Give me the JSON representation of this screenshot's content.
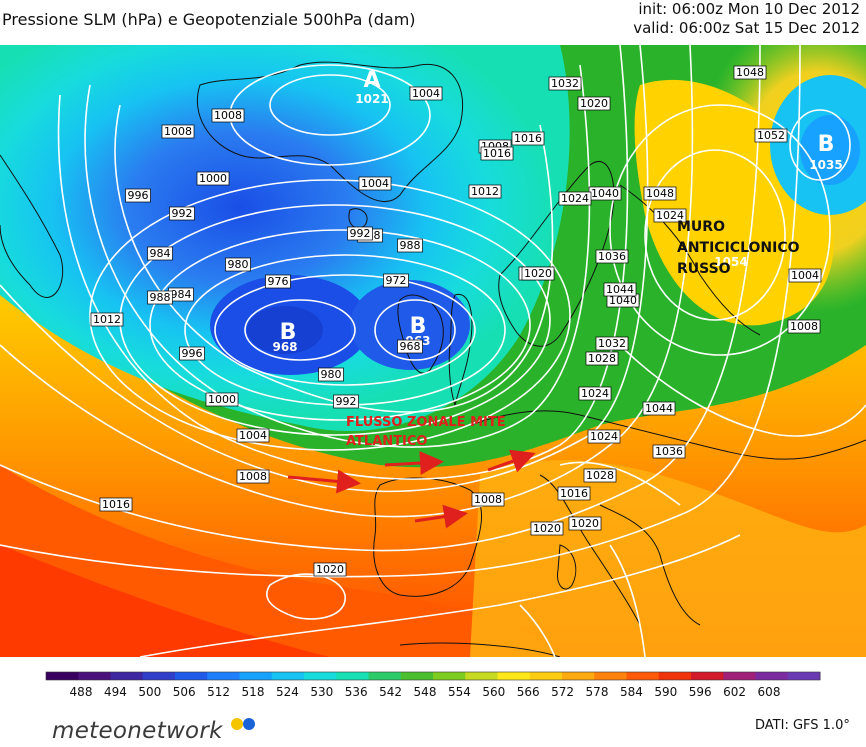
{
  "header": {
    "title": "Pressione SLM (hPa) e Geopotenziale 500hPa (dam)",
    "init": "init: 06:00z Mon 10 Dec 2012",
    "valid": "valid: 06:00z Sat 15 Dec 2012"
  },
  "map": {
    "pressure_centers": [
      {
        "kind": "A",
        "value": "1021"
      },
      {
        "kind": "B",
        "value": "1035"
      },
      {
        "kind": "B",
        "value": "968"
      },
      {
        "kind": "B",
        "value": "963"
      },
      {
        "kind": "",
        "value": "1054"
      }
    ],
    "isobar_labels": [
      "1008",
      "1008",
      "1004",
      "1000",
      "1004",
      "1008",
      "1020",
      "1016",
      "1012",
      "1016",
      "1020",
      "996",
      "992",
      "988",
      "984",
      "980",
      "976",
      "972",
      "968",
      "980",
      "984",
      "988",
      "992",
      "996",
      "1000",
      "1004",
      "1008",
      "1012",
      "1016",
      "1020",
      "1024",
      "1028",
      "1032",
      "1036",
      "1040",
      "1044",
      "1048",
      "1052",
      "1004",
      "1008",
      "1012",
      "1016",
      "1020",
      "1024",
      "1028",
      "1032",
      "1036",
      "1040",
      "1044",
      "1048",
      "1024",
      "1024",
      "1020",
      "1008",
      "992",
      "988"
    ],
    "annotations": {
      "russian_high": [
        "MURO",
        "ANTICICLONICO",
        "RUSSO"
      ],
      "zonal_flow": [
        "FLUSSO ZONALE MITE",
        "ATLANTICO"
      ]
    },
    "colors": {
      "low": "#1a4ee6",
      "mid": "#17d7d7",
      "green": "#2ab32a",
      "yellow": "#ffd200",
      "orange": "#ff8a00",
      "red": "#ff3a00",
      "annotation_red": "#e0201c",
      "isobar": "#ffffff",
      "coast": "#111111"
    }
  },
  "legend": {
    "values": [
      "488",
      "494",
      "500",
      "506",
      "512",
      "518",
      "524",
      "530",
      "536",
      "542",
      "548",
      "554",
      "560",
      "566",
      "572",
      "578",
      "584",
      "590",
      "596",
      "602",
      "608"
    ],
    "colors": [
      "#3a0060",
      "#4a107c",
      "#3f27a2",
      "#2f3fca",
      "#1f5ae8",
      "#1f80ff",
      "#17a2ff",
      "#17c3f2",
      "#17dcdc",
      "#17dfb4",
      "#2bcb6a",
      "#4cbf31",
      "#7fcc21",
      "#c6da21",
      "#ffe81a",
      "#ffcc14",
      "#ffaa10",
      "#ff820c",
      "#ff5a08",
      "#f2320a",
      "#d21a2a",
      "#a0207a",
      "#7c2aa0",
      "#6a3ab5"
    ]
  },
  "footer": {
    "logo": "meteonetwork",
    "source": "DATI:  GFS  1.0°"
  }
}
